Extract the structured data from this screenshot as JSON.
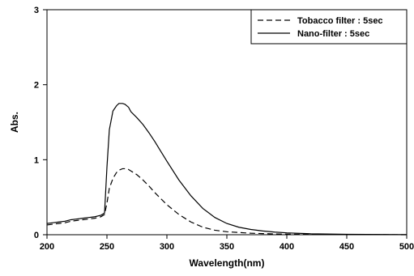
{
  "chart_data": {
    "type": "line",
    "xlabel": "Wavelength(nm)",
    "ylabel": "Abs.",
    "xlim": [
      200,
      500
    ],
    "ylim": [
      0,
      3
    ],
    "xticks": [
      "200",
      "250",
      "300",
      "350",
      "400",
      "450",
      "500"
    ],
    "yticks": [
      "0",
      "1",
      "2",
      "3"
    ],
    "grid": false,
    "legend_position": "top-right",
    "series": [
      {
        "name": "Tobacco filter : 5sec",
        "style": "dashed",
        "color": "#000000",
        "x": [
          200,
          205,
          210,
          215,
          220,
          225,
          230,
          235,
          240,
          245,
          248,
          250,
          252,
          255,
          258,
          260,
          263,
          265,
          268,
          270,
          275,
          280,
          285,
          290,
          295,
          300,
          310,
          320,
          330,
          340,
          350,
          360,
          370,
          380,
          390,
          400,
          420,
          450,
          500
        ],
        "y": [
          0.13,
          0.14,
          0.15,
          0.16,
          0.18,
          0.19,
          0.2,
          0.21,
          0.22,
          0.24,
          0.27,
          0.42,
          0.62,
          0.75,
          0.83,
          0.86,
          0.88,
          0.88,
          0.87,
          0.85,
          0.8,
          0.73,
          0.65,
          0.56,
          0.48,
          0.4,
          0.27,
          0.17,
          0.1,
          0.06,
          0.04,
          0.03,
          0.02,
          0.015,
          0.01,
          0.008,
          0.005,
          0.003,
          0.0
        ]
      },
      {
        "name": "Nano-filter : 5sec",
        "style": "solid",
        "color": "#000000",
        "x": [
          200,
          205,
          210,
          215,
          220,
          225,
          230,
          235,
          240,
          245,
          248,
          250,
          252,
          255,
          258,
          260,
          263,
          265,
          268,
          270,
          275,
          280,
          285,
          290,
          295,
          300,
          310,
          320,
          330,
          340,
          350,
          360,
          370,
          380,
          390,
          400,
          420,
          450,
          500
        ],
        "y": [
          0.15,
          0.16,
          0.17,
          0.18,
          0.2,
          0.21,
          0.22,
          0.23,
          0.24,
          0.26,
          0.29,
          0.9,
          1.4,
          1.65,
          1.72,
          1.75,
          1.75,
          1.74,
          1.7,
          1.64,
          1.56,
          1.47,
          1.36,
          1.24,
          1.11,
          0.98,
          0.73,
          0.52,
          0.35,
          0.23,
          0.15,
          0.1,
          0.07,
          0.05,
          0.035,
          0.025,
          0.013,
          0.006,
          0.002
        ]
      }
    ]
  }
}
